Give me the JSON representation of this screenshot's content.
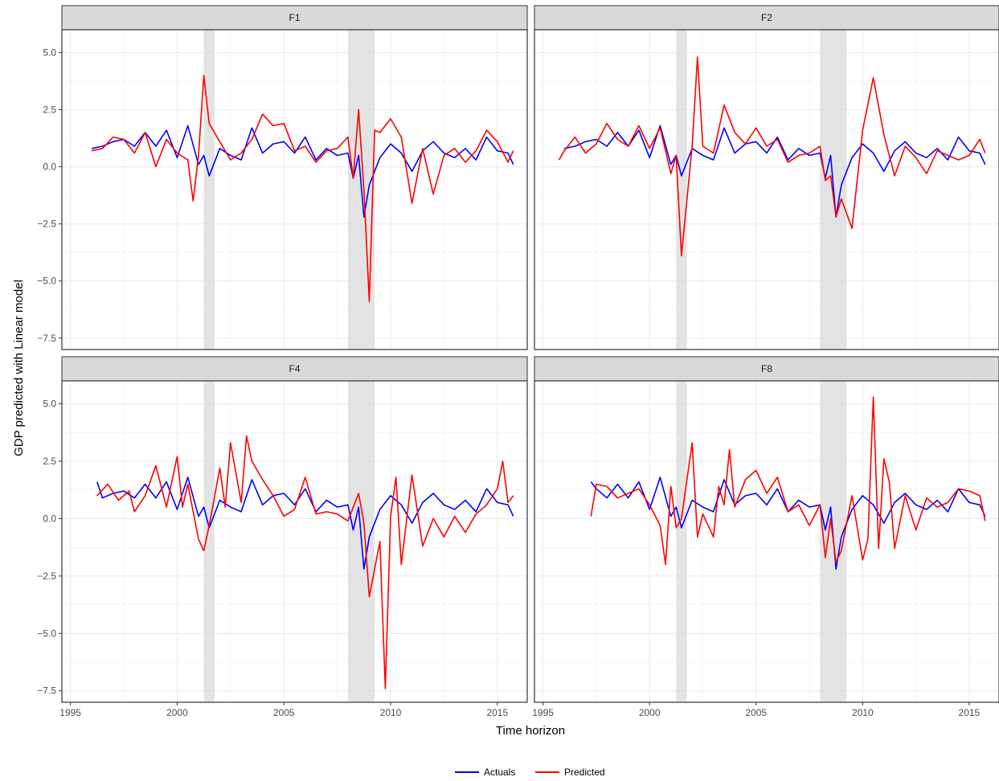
{
  "chart_data": {
    "type": "line",
    "xlabel": "Time horizon",
    "ylabel": "GDP predicted with Linear model",
    "xlim": [
      1994.6,
      2016.4
    ],
    "xticks": [
      1995,
      2000,
      2005,
      2010,
      2015
    ],
    "ylim": [
      -8.0,
      6.0
    ],
    "yticks": [
      -7.5,
      -5.0,
      -2.5,
      0.0,
      2.5,
      5.0
    ],
    "ytick_labels": [
      "−7.5",
      "−5.0",
      "−2.5",
      "0.0",
      "2.5",
      "5.0"
    ],
    "grid": true,
    "legend_position": "bottom",
    "recession_bands": [
      [
        2001.25,
        2001.75
      ],
      [
        2008.0,
        2009.25
      ]
    ],
    "colors": {
      "Actuals": "#0000ff",
      "Predicted": "#ff0000",
      "band": "#d9d9d9"
    },
    "panels": [
      {
        "label": "F1",
        "series": [
          {
            "name": "Actuals",
            "x": [
              1996.0,
              1996.5,
              1997.0,
              1997.5,
              1998.0,
              1998.5,
              1999.0,
              1999.5,
              2000.0,
              2000.5,
              2001.0,
              2001.25,
              2001.5,
              2002.0,
              2002.5,
              2003.0,
              2003.5,
              2004.0,
              2004.5,
              2005.0,
              2005.5,
              2006.0,
              2006.5,
              2007.0,
              2007.5,
              2008.0,
              2008.25,
              2008.5,
              2008.75,
              2009.0,
              2009.5,
              2010.0,
              2010.5,
              2011.0,
              2011.5,
              2012.0,
              2012.5,
              2013.0,
              2013.5,
              2014.0,
              2014.5,
              2015.0,
              2015.5,
              2015.75
            ],
            "y": [
              0.8,
              0.9,
              1.1,
              1.2,
              0.9,
              1.5,
              0.9,
              1.6,
              0.4,
              1.8,
              0.1,
              0.5,
              -0.4,
              0.8,
              0.5,
              0.3,
              1.7,
              0.6,
              1.0,
              1.1,
              0.6,
              1.3,
              0.3,
              0.8,
              0.5,
              0.6,
              -0.5,
              0.5,
              -2.2,
              -0.8,
              0.4,
              1.0,
              0.6,
              -0.2,
              0.7,
              1.1,
              0.6,
              0.4,
              0.8,
              0.3,
              1.3,
              0.7,
              0.6,
              0.1
            ]
          },
          {
            "name": "Predicted",
            "x": [
              1996.0,
              1996.5,
              1997.0,
              1997.5,
              1998.0,
              1998.5,
              1999.0,
              1999.5,
              2000.0,
              2000.5,
              2000.75,
              2001.0,
              2001.25,
              2001.5,
              2002.0,
              2002.5,
              2003.0,
              2003.5,
              2004.0,
              2004.5,
              2005.0,
              2005.5,
              2006.0,
              2006.5,
              2007.0,
              2007.5,
              2008.0,
              2008.25,
              2008.5,
              2008.75,
              2009.0,
              2009.25,
              2009.5,
              2010.0,
              2010.5,
              2011.0,
              2011.5,
              2012.0,
              2012.5,
              2013.0,
              2013.5,
              2014.0,
              2014.5,
              2015.0,
              2015.5,
              2015.75
            ],
            "y": [
              0.7,
              0.8,
              1.3,
              1.2,
              0.6,
              1.5,
              0.0,
              1.2,
              0.6,
              0.3,
              -1.5,
              0.5,
              4.0,
              1.9,
              1.1,
              0.3,
              0.6,
              1.2,
              2.3,
              1.8,
              1.9,
              0.7,
              0.9,
              0.2,
              0.7,
              0.8,
              1.3,
              -0.5,
              2.5,
              -1.0,
              -5.9,
              1.6,
              1.5,
              2.1,
              1.3,
              -1.6,
              0.8,
              -1.2,
              0.5,
              0.8,
              0.2,
              0.7,
              1.6,
              1.1,
              0.2,
              0.7
            ]
          }
        ]
      },
      {
        "label": "F2",
        "series": [
          {
            "name": "Actuals",
            "x": [
              1996.0,
              1996.5,
              1997.0,
              1997.5,
              1998.0,
              1998.5,
              1999.0,
              1999.5,
              2000.0,
              2000.5,
              2001.0,
              2001.25,
              2001.5,
              2002.0,
              2002.5,
              2003.0,
              2003.5,
              2004.0,
              2004.5,
              2005.0,
              2005.5,
              2006.0,
              2006.5,
              2007.0,
              2007.5,
              2008.0,
              2008.25,
              2008.5,
              2008.75,
              2009.0,
              2009.5,
              2010.0,
              2010.5,
              2011.0,
              2011.5,
              2012.0,
              2012.5,
              2013.0,
              2013.5,
              2014.0,
              2014.5,
              2015.0,
              2015.5,
              2015.75
            ],
            "y": [
              0.8,
              0.9,
              1.1,
              1.2,
              0.9,
              1.5,
              0.9,
              1.6,
              0.4,
              1.8,
              0.1,
              0.5,
              -0.4,
              0.8,
              0.5,
              0.3,
              1.7,
              0.6,
              1.0,
              1.1,
              0.6,
              1.3,
              0.3,
              0.8,
              0.5,
              0.6,
              -0.5,
              0.5,
              -2.2,
              -0.8,
              0.4,
              1.0,
              0.6,
              -0.2,
              0.7,
              1.1,
              0.6,
              0.4,
              0.8,
              0.3,
              1.3,
              0.7,
              0.6,
              0.1
            ]
          },
          {
            "name": "Predicted",
            "x": [
              1995.75,
              1996.0,
              1996.5,
              1997.0,
              1997.5,
              1998.0,
              1998.5,
              1999.0,
              1999.5,
              2000.0,
              2000.5,
              2001.0,
              2001.25,
              2001.5,
              2002.0,
              2002.25,
              2002.5,
              2003.0,
              2003.5,
              2004.0,
              2004.5,
              2005.0,
              2005.5,
              2006.0,
              2006.5,
              2007.0,
              2007.5,
              2008.0,
              2008.25,
              2008.5,
              2008.75,
              2009.0,
              2009.5,
              2010.0,
              2010.5,
              2011.0,
              2011.5,
              2012.0,
              2012.5,
              2013.0,
              2013.5,
              2014.0,
              2014.5,
              2015.0,
              2015.5,
              2015.75
            ],
            "y": [
              0.3,
              0.7,
              1.3,
              0.6,
              1.0,
              1.9,
              1.2,
              0.9,
              1.8,
              0.8,
              1.7,
              -0.3,
              0.5,
              -3.9,
              0.9,
              4.8,
              0.9,
              0.6,
              2.7,
              1.5,
              1.0,
              1.7,
              0.9,
              1.2,
              0.2,
              0.5,
              0.6,
              0.9,
              -0.6,
              -0.4,
              -2.2,
              -1.4,
              -2.7,
              1.6,
              3.9,
              1.4,
              -0.4,
              0.9,
              0.4,
              -0.3,
              0.7,
              0.5,
              0.3,
              0.5,
              1.2,
              0.6
            ]
          }
        ]
      },
      {
        "label": "F4",
        "series": [
          {
            "name": "Actuals",
            "x": [
              1996.25,
              1996.5,
              1997.0,
              1997.5,
              1998.0,
              1998.5,
              1999.0,
              1999.5,
              2000.0,
              2000.5,
              2001.0,
              2001.25,
              2001.5,
              2002.0,
              2002.5,
              2003.0,
              2003.5,
              2004.0,
              2004.5,
              2005.0,
              2005.5,
              2006.0,
              2006.5,
              2007.0,
              2007.5,
              2008.0,
              2008.25,
              2008.5,
              2008.75,
              2009.0,
              2009.5,
              2010.0,
              2010.5,
              2011.0,
              2011.5,
              2012.0,
              2012.5,
              2013.0,
              2013.5,
              2014.0,
              2014.5,
              2015.0,
              2015.5,
              2015.75
            ],
            "y": [
              1.6,
              0.9,
              1.1,
              1.2,
              0.9,
              1.5,
              0.9,
              1.6,
              0.4,
              1.8,
              0.1,
              0.5,
              -0.4,
              0.8,
              0.5,
              0.3,
              1.7,
              0.6,
              1.0,
              1.1,
              0.6,
              1.3,
              0.3,
              0.8,
              0.5,
              0.6,
              -0.5,
              0.5,
              -2.2,
              -0.8,
              0.4,
              1.0,
              0.6,
              -0.2,
              0.7,
              1.1,
              0.6,
              0.4,
              0.8,
              0.3,
              1.3,
              0.7,
              0.6,
              0.1
            ]
          },
          {
            "name": "Predicted",
            "x": [
              1996.25,
              1996.75,
              1997.25,
              1997.75,
              1998.0,
              1998.5,
              1999.0,
              1999.5,
              2000.0,
              2000.25,
              2000.5,
              2001.0,
              2001.25,
              2001.5,
              2002.0,
              2002.25,
              2002.5,
              2003.0,
              2003.25,
              2003.5,
              2004.0,
              2004.5,
              2005.0,
              2005.5,
              2006.0,
              2006.5,
              2007.0,
              2007.5,
              2008.0,
              2008.5,
              2008.75,
              2009.0,
              2009.5,
              2009.75,
              2010.0,
              2010.25,
              2010.5,
              2011.0,
              2011.5,
              2012.0,
              2012.5,
              2013.0,
              2013.5,
              2014.0,
              2014.5,
              2015.0,
              2015.25,
              2015.5,
              2015.75
            ],
            "y": [
              1.0,
              1.5,
              0.8,
              1.2,
              0.3,
              1.0,
              2.3,
              0.5,
              2.7,
              0.5,
              1.5,
              -0.9,
              -1.4,
              -0.3,
              2.2,
              0.5,
              3.3,
              0.7,
              3.6,
              2.5,
              1.7,
              1.0,
              0.1,
              0.4,
              1.8,
              0.2,
              0.3,
              0.2,
              -0.1,
              1.1,
              -0.2,
              -3.4,
              -1.0,
              -7.4,
              0.1,
              1.8,
              -2.0,
              1.9,
              -1.2,
              0.0,
              -0.8,
              0.1,
              -0.6,
              0.2,
              0.6,
              1.3,
              2.5,
              0.7,
              1.0
            ]
          }
        ]
      },
      {
        "label": "F8",
        "series": [
          {
            "name": "Actuals",
            "x": [
              1997.25,
              1997.5,
              1998.0,
              1998.5,
              1999.0,
              1999.5,
              2000.0,
              2000.5,
              2001.0,
              2001.25,
              2001.5,
              2002.0,
              2002.5,
              2003.0,
              2003.5,
              2004.0,
              2004.5,
              2005.0,
              2005.5,
              2006.0,
              2006.5,
              2007.0,
              2007.5,
              2008.0,
              2008.25,
              2008.5,
              2008.75,
              2009.0,
              2009.5,
              2010.0,
              2010.5,
              2011.0,
              2011.5,
              2012.0,
              2012.5,
              2013.0,
              2013.5,
              2014.0,
              2014.5,
              2015.0,
              2015.5,
              2015.75
            ],
            "y": [
              1.6,
              1.3,
              0.9,
              1.5,
              0.9,
              1.6,
              0.4,
              1.8,
              0.1,
              0.5,
              -0.4,
              0.8,
              0.5,
              0.3,
              1.7,
              0.6,
              1.0,
              1.1,
              0.6,
              1.3,
              0.3,
              0.8,
              0.5,
              0.6,
              -0.5,
              0.5,
              -2.2,
              -0.8,
              0.4,
              1.0,
              0.6,
              -0.2,
              0.7,
              1.1,
              0.6,
              0.4,
              0.8,
              0.3,
              1.3,
              0.7,
              0.6,
              0.1
            ]
          },
          {
            "name": "Predicted",
            "x": [
              1997.25,
              1997.5,
              1998.0,
              1998.5,
              1999.0,
              1999.5,
              2000.0,
              2000.5,
              2000.75,
              2001.0,
              2001.25,
              2001.5,
              2002.0,
              2002.25,
              2002.5,
              2003.0,
              2003.25,
              2003.5,
              2003.75,
              2004.0,
              2004.5,
              2005.0,
              2005.5,
              2006.0,
              2006.5,
              2007.0,
              2007.5,
              2008.0,
              2008.25,
              2008.5,
              2008.75,
              2009.0,
              2009.5,
              2010.0,
              2010.25,
              2010.5,
              2010.75,
              2011.0,
              2011.25,
              2011.5,
              2012.0,
              2012.5,
              2013.0,
              2013.5,
              2014.0,
              2014.5,
              2015.0,
              2015.5,
              2015.75
            ],
            "y": [
              0.1,
              1.5,
              1.4,
              0.9,
              1.1,
              1.3,
              0.6,
              -0.3,
              -2.0,
              1.4,
              -0.4,
              0.0,
              3.3,
              -0.8,
              0.2,
              -0.8,
              1.4,
              0.6,
              3.0,
              0.5,
              1.7,
              2.1,
              1.1,
              1.8,
              0.3,
              0.6,
              -0.3,
              0.6,
              -1.7,
              0.0,
              -1.9,
              -1.4,
              1.0,
              -1.8,
              -0.9,
              5.3,
              -1.3,
              2.6,
              1.6,
              -1.3,
              1.0,
              -0.5,
              0.9,
              0.5,
              0.7,
              1.3,
              1.2,
              1.0,
              -0.1
            ]
          }
        ]
      }
    ]
  }
}
